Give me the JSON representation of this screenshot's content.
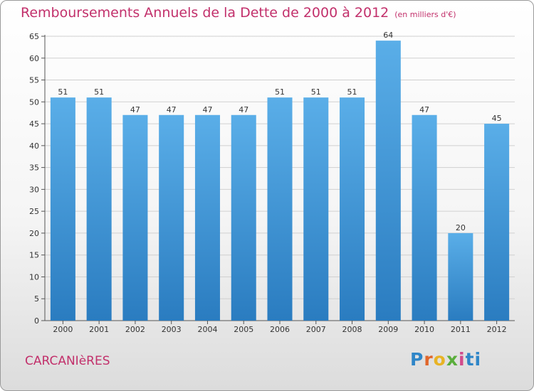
{
  "header": {
    "title": "Remboursements Annuels de la Dette de 2000 à 2012",
    "unit": "(en milliers d'€)"
  },
  "footer": {
    "commune": "CARCANIèRES",
    "logo": "Proxiti"
  },
  "colors": {
    "title": "#c2306b",
    "bar_top": "#5aaee8",
    "bar_bottom": "#2a7cc0",
    "grid": "#d0d0d0"
  },
  "chart_data": {
    "type": "bar",
    "title": "Remboursements Annuels de la Dette de 2000 à 2012",
    "xlabel": "",
    "ylabel": "",
    "categories": [
      "2000",
      "2001",
      "2002",
      "2003",
      "2004",
      "2005",
      "2006",
      "2007",
      "2008",
      "2009",
      "2010",
      "2011",
      "2012"
    ],
    "values": [
      51,
      51,
      47,
      47,
      47,
      47,
      51,
      51,
      51,
      64,
      47,
      20,
      45
    ],
    "ylim": [
      0,
      65
    ],
    "yticks": [
      0,
      5,
      10,
      15,
      20,
      25,
      30,
      35,
      40,
      45,
      50,
      55,
      60,
      65
    ],
    "grid": true,
    "legend": "none"
  }
}
